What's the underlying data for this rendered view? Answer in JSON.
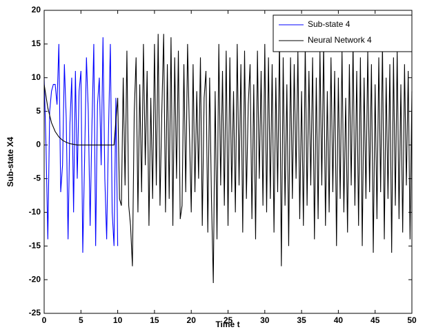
{
  "chart_data": {
    "type": "line",
    "xlabel": "Time t",
    "ylabel": "Sub-state X4",
    "xlim": [
      0,
      50
    ],
    "xticks": [
      0,
      5,
      10,
      15,
      20,
      25,
      30,
      35,
      40,
      45,
      50
    ],
    "ylim": [
      -25,
      20
    ],
    "yticks": [
      -25,
      -20,
      -15,
      -10,
      -5,
      0,
      5,
      10,
      15,
      20
    ],
    "legend": "upper right",
    "series": [
      {
        "name": "Sub-state 4",
        "color": "#0000ff",
        "x": [
          0,
          0.25,
          0.5,
          0.75,
          1,
          1.25,
          1.5,
          1.75,
          2,
          2.25,
          2.5,
          2.75,
          3,
          3.25,
          3.5,
          3.75,
          4,
          4.25,
          4.5,
          4.75,
          5,
          5.25,
          5.5,
          5.75,
          6,
          6.25,
          6.5,
          6.75,
          7,
          7.25,
          7.5,
          7.75,
          8,
          8.25,
          8.5,
          8.75,
          9,
          9.25,
          9.5,
          9.75,
          10
        ],
        "values": [
          10,
          0,
          -14,
          5,
          8,
          9,
          9,
          6,
          15,
          -7,
          -3,
          12,
          4,
          -14,
          3,
          10,
          -10,
          11,
          -5,
          8,
          11,
          -16,
          -2,
          13,
          5,
          -12,
          3,
          15,
          -15,
          6,
          10,
          -3,
          16,
          -5,
          -14,
          2,
          15,
          -10,
          -15,
          7,
          -15
        ]
      },
      {
        "name": "Neural Network 4",
        "color": "#000000",
        "x": [
          0,
          0.5,
          1,
          1.5,
          2,
          2.5,
          3,
          3.5,
          4,
          4.5,
          5,
          5.5,
          6,
          6.5,
          7,
          7.5,
          8,
          8.5,
          9,
          9.5,
          10,
          10.25,
          10.5,
          10.75,
          11,
          11.25,
          11.5,
          11.75,
          12,
          12.25,
          12.5,
          12.75,
          13,
          13.25,
          13.5,
          13.75,
          14,
          14.25,
          14.5,
          14.75,
          15,
          15.25,
          15.5,
          15.75,
          16,
          16.25,
          16.5,
          16.75,
          17,
          17.25,
          17.5,
          17.75,
          18,
          18.25,
          18.5,
          18.75,
          19,
          19.25,
          19.5,
          19.75,
          20,
          20.25,
          20.5,
          20.75,
          21,
          21.25,
          21.5,
          21.75,
          22,
          22.25,
          22.5,
          22.75,
          23,
          23.25,
          23.5,
          23.75,
          24,
          24.25,
          24.5,
          24.75,
          25,
          25.25,
          25.5,
          25.75,
          26,
          26.25,
          26.5,
          26.75,
          27,
          27.25,
          27.5,
          27.75,
          28,
          28.25,
          28.5,
          28.75,
          29,
          29.25,
          29.5,
          29.75,
          30,
          30.25,
          30.5,
          30.75,
          31,
          31.25,
          31.5,
          31.75,
          32,
          32.25,
          32.5,
          32.75,
          33,
          33.25,
          33.5,
          33.75,
          34,
          34.25,
          34.5,
          34.75,
          35,
          35.25,
          35.5,
          35.75,
          36,
          36.25,
          36.5,
          36.75,
          37,
          37.25,
          37.5,
          37.75,
          38,
          38.25,
          38.5,
          38.75,
          39,
          39.25,
          39.5,
          39.75,
          40,
          40.25,
          40.5,
          40.75,
          41,
          41.25,
          41.5,
          41.75,
          42,
          42.25,
          42.5,
          42.75,
          43,
          43.25,
          43.5,
          43.75,
          44,
          44.25,
          44.5,
          44.75,
          45,
          45.25,
          45.5,
          45.75,
          46,
          46.25,
          46.5,
          46.75,
          47,
          47.25,
          47.5,
          47.75,
          48,
          48.25,
          48.5,
          48.75,
          49,
          49.25,
          49.5,
          49.75,
          50
        ],
        "values": [
          9,
          5.5,
          3.3,
          2,
          1.2,
          0.7,
          0.4,
          0.2,
          0.1,
          0,
          0,
          0,
          0,
          0,
          0,
          0,
          0,
          0,
          0,
          0,
          7,
          -8,
          -9,
          10,
          -6,
          14,
          -9,
          -12,
          -18,
          5,
          13,
          -10,
          9,
          -7,
          15,
          -3,
          11,
          -12,
          7,
          -8,
          15,
          -6,
          16.5,
          -9,
          5,
          16.5,
          -10,
          12,
          -8,
          16,
          -12,
          13,
          -5,
          14,
          -11,
          -9,
          12,
          -7,
          15,
          2,
          -10,
          12,
          -7,
          8,
          -5,
          13,
          -12,
          7,
          11,
          -13,
          10,
          -8,
          -20.5,
          8,
          -14,
          15,
          -6,
          11,
          -9,
          14,
          -12,
          13,
          -7,
          8,
          -10,
          15,
          -6,
          12,
          -13,
          14,
          -8,
          6,
          12,
          -11,
          9,
          -14,
          14,
          -5,
          11,
          -9,
          15,
          -10,
          13,
          -8,
          12,
          -13,
          10,
          -7,
          16,
          -18,
          13,
          -9,
          9,
          -15,
          13,
          -8,
          12,
          -5,
          14,
          -11,
          8,
          -12,
          15,
          -9,
          11,
          -6,
          13,
          -14,
          10,
          -11,
          14,
          -6,
          15,
          -12,
          8,
          -10,
          13,
          -7,
          11,
          -15,
          10,
          -8,
          14,
          -10,
          7,
          -13,
          12,
          -6,
          15,
          -9,
          11,
          -12,
          13,
          -15,
          10,
          -8,
          14,
          -7,
          12,
          -16,
          9,
          -11,
          13,
          -7,
          15,
          -14,
          10,
          -8,
          12,
          -16,
          13,
          -9,
          14,
          -11,
          9,
          -13,
          12,
          -6,
          11,
          -14,
          8
        ]
      }
    ]
  }
}
